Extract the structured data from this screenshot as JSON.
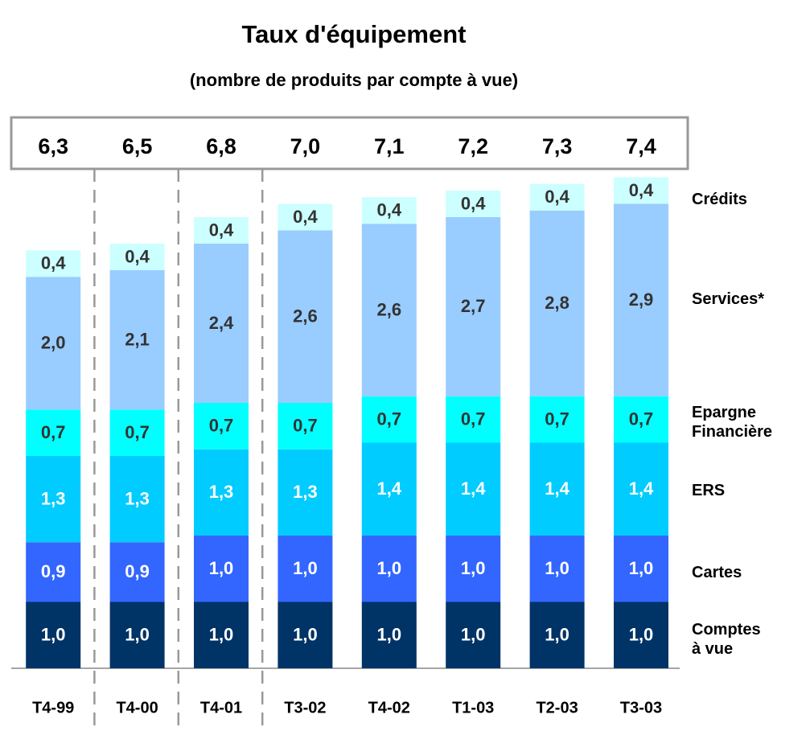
{
  "chart_data": {
    "type": "stacked-bar",
    "title": "Taux d'équipement",
    "subtitle": "(nombre de produits par compte à vue)",
    "categories": [
      "T4-99",
      "T4-00",
      "T4-01",
      "T3-02",
      "T4-02",
      "T1-03",
      "T2-03",
      "T3-03"
    ],
    "totals": {
      "values": [
        6.3,
        6.5,
        6.8,
        7.0,
        7.1,
        7.2,
        7.3,
        7.4
      ],
      "value_labels": [
        "6,3",
        "6,5",
        "6,8",
        "7,0",
        "7,1",
        "7,2",
        "7,3",
        "7,4"
      ]
    },
    "series": [
      {
        "name": "Comptes à vue",
        "color": "#003366",
        "label_color": "#ffffff",
        "values": [
          1.0,
          1.0,
          1.0,
          1.0,
          1.0,
          1.0,
          1.0,
          1.0
        ],
        "value_labels": [
          "1,0",
          "1,0",
          "1,0",
          "1,0",
          "1,0",
          "1,0",
          "1,0",
          "1,0"
        ]
      },
      {
        "name": "Cartes",
        "color": "#3366ff",
        "label_color": "#ffffff",
        "values": [
          0.9,
          0.9,
          1.0,
          1.0,
          1.0,
          1.0,
          1.0,
          1.0
        ],
        "value_labels": [
          "0,9",
          "0,9",
          "1,0",
          "1,0",
          "1,0",
          "1,0",
          "1,0",
          "1,0"
        ]
      },
      {
        "name": "ERS",
        "color": "#00ccff",
        "label_color": "#ffffff",
        "values": [
          1.3,
          1.3,
          1.3,
          1.3,
          1.4,
          1.4,
          1.4,
          1.4
        ],
        "value_labels": [
          "1,3",
          "1,3",
          "1,3",
          "1,3",
          "1,4",
          "1,4",
          "1,4",
          "1,4"
        ]
      },
      {
        "name": "Epargne Financière",
        "color": "#00ffff",
        "label_color": "#333333",
        "values": [
          0.7,
          0.7,
          0.7,
          0.7,
          0.7,
          0.7,
          0.7,
          0.7
        ],
        "value_labels": [
          "0,7",
          "0,7",
          "0,7",
          "0,7",
          "0,7",
          "0,7",
          "0,7",
          "0,7"
        ]
      },
      {
        "name": "Services*",
        "color": "#99ccff",
        "label_color": "#333333",
        "values": [
          2.0,
          2.1,
          2.4,
          2.6,
          2.6,
          2.7,
          2.8,
          2.9
        ],
        "value_labels": [
          "2,0",
          "2,1",
          "2,4",
          "2,6",
          "2,6",
          "2,7",
          "2,8",
          "2,9"
        ]
      },
      {
        "name": "Crédits",
        "color": "#ccffff",
        "label_color": "#333333",
        "values": [
          0.4,
          0.4,
          0.4,
          0.4,
          0.4,
          0.4,
          0.4,
          0.4
        ],
        "value_labels": [
          "0,4",
          "0,4",
          "0,4",
          "0,4",
          "0,4",
          "0,4",
          "0,4",
          "0,4"
        ]
      }
    ]
  }
}
